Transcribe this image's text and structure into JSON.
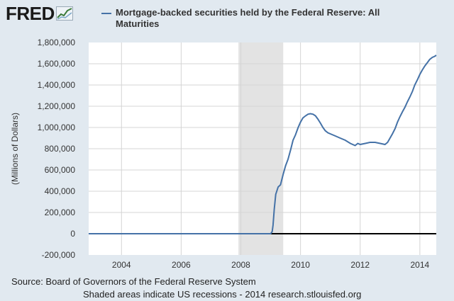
{
  "logo": {
    "text": "FRED",
    "icon": "line-chart-icon"
  },
  "footer": {
    "source": "Source: Board of Governors of the Federal Reserve System",
    "note": "Shaded areas indicate US recessions - 2014 research.stlouisfed.org"
  },
  "colors": {
    "background": "#e1e9f0",
    "plot_background": "#ffffff",
    "series": "#4572a7",
    "recession": "#e3e3e3",
    "zero_line": "#000000"
  },
  "chart_data": {
    "type": "line",
    "title": "",
    "xlabel": "",
    "ylabel": "(Millions of Dollars)",
    "xlim": [
      2002.9,
      2014.55
    ],
    "ylim": [
      -200000,
      1800000
    ],
    "x_ticks": [
      {
        "value": 2004,
        "label": "2004"
      },
      {
        "value": 2006,
        "label": "2006"
      },
      {
        "value": 2008,
        "label": "2008"
      },
      {
        "value": 2010,
        "label": "2010"
      },
      {
        "value": 2012,
        "label": "2012"
      },
      {
        "value": 2014,
        "label": "2014"
      }
    ],
    "y_ticks": [
      {
        "value": -200000,
        "label": "-200,000"
      },
      {
        "value": 0,
        "label": "0"
      },
      {
        "value": 200000,
        "label": "200,000"
      },
      {
        "value": 400000,
        "label": "400,000"
      },
      {
        "value": 600000,
        "label": "600,000"
      },
      {
        "value": 800000,
        "label": "800,000"
      },
      {
        "value": 1000000,
        "label": "1,000,000"
      },
      {
        "value": 1200000,
        "label": "1,200,000"
      },
      {
        "value": 1400000,
        "label": "1,400,000"
      },
      {
        "value": 1600000,
        "label": "1,600,000"
      },
      {
        "value": 1800000,
        "label": "1,800,000"
      }
    ],
    "grid": true,
    "recessions": [
      {
        "start": 2007.92,
        "end": 2009.42
      }
    ],
    "zero_line": 0,
    "legend": "top",
    "series": [
      {
        "name": "Mortgage-backed securities held by the Federal Reserve: All Maturities",
        "x": [
          2002.9,
          2008.0,
          2009.0,
          2009.05,
          2009.08,
          2009.12,
          2009.17,
          2009.25,
          2009.33,
          2009.42,
          2009.5,
          2009.58,
          2009.67,
          2009.75,
          2009.83,
          2009.92,
          2010.0,
          2010.08,
          2010.17,
          2010.25,
          2010.33,
          2010.42,
          2010.5,
          2010.58,
          2010.67,
          2010.75,
          2010.83,
          2010.92,
          2011.0,
          2011.17,
          2011.33,
          2011.5,
          2011.67,
          2011.83,
          2011.92,
          2012.0,
          2012.17,
          2012.33,
          2012.5,
          2012.67,
          2012.83,
          2012.92,
          2013.0,
          2013.08,
          2013.17,
          2013.25,
          2013.33,
          2013.42,
          2013.5,
          2013.58,
          2013.67,
          2013.75,
          2013.83,
          2013.92,
          2014.0,
          2014.08,
          2014.17,
          2014.25,
          2014.33,
          2014.42,
          2014.5,
          2014.55
        ],
        "y": [
          0,
          0,
          0,
          20000,
          80000,
          230000,
          370000,
          440000,
          460000,
          560000,
          640000,
          700000,
          790000,
          880000,
          930000,
          1000000,
          1050000,
          1090000,
          1110000,
          1125000,
          1130000,
          1125000,
          1110000,
          1080000,
          1040000,
          1000000,
          970000,
          950000,
          940000,
          920000,
          900000,
          880000,
          850000,
          830000,
          850000,
          840000,
          850000,
          860000,
          860000,
          850000,
          840000,
          860000,
          900000,
          940000,
          990000,
          1050000,
          1100000,
          1150000,
          1190000,
          1240000,
          1290000,
          1340000,
          1400000,
          1450000,
          1500000,
          1540000,
          1580000,
          1610000,
          1640000,
          1660000,
          1670000,
          1680000
        ]
      }
    ]
  }
}
